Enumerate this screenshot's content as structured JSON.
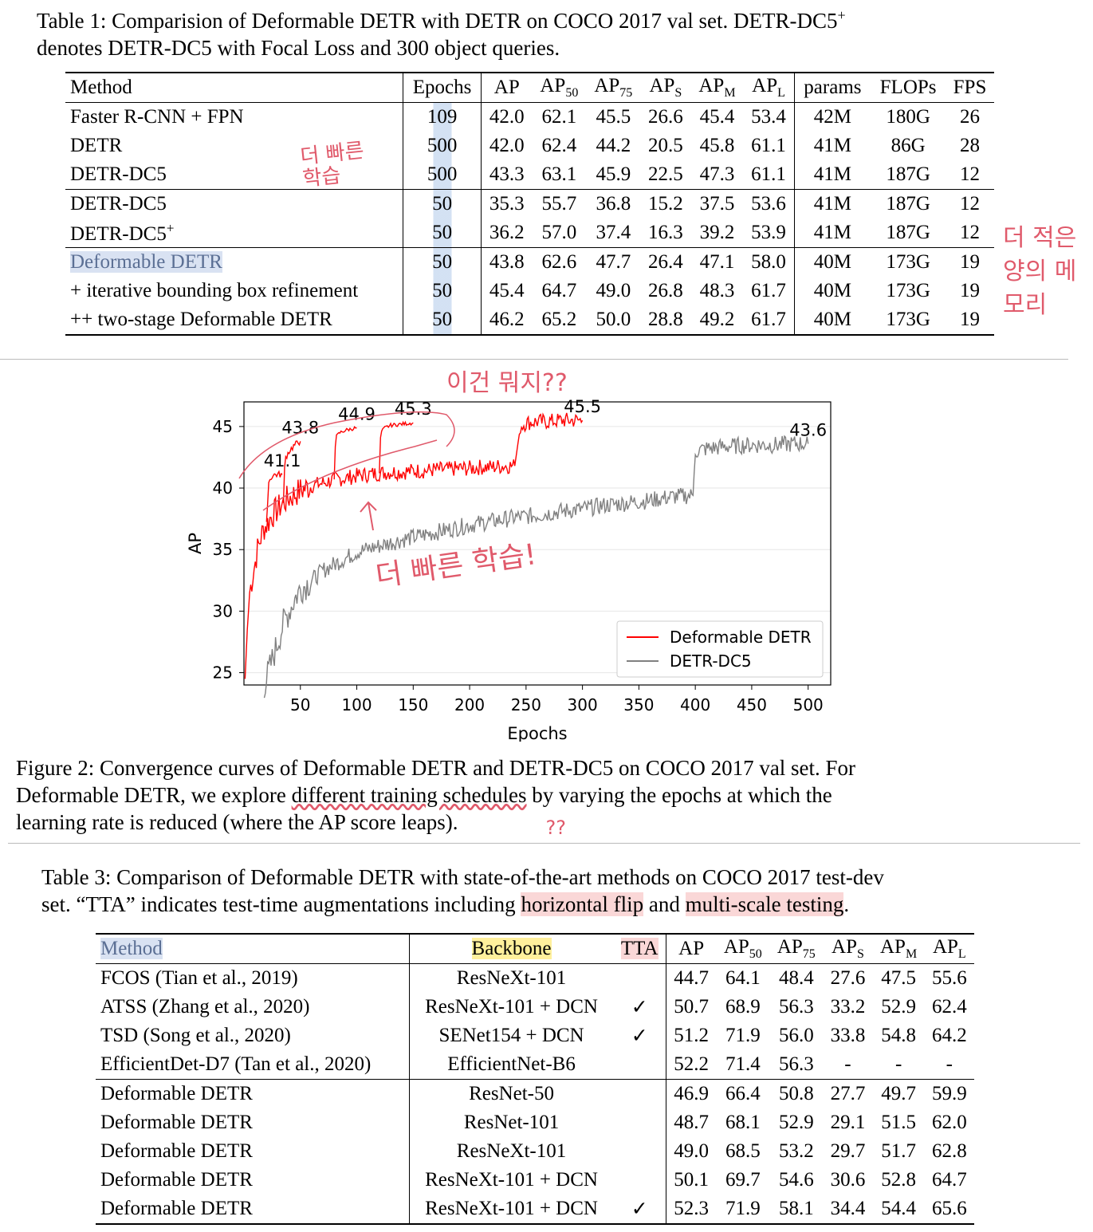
{
  "table1": {
    "caption_line1": "Table 1: Comparision of Deformable DETR with DETR on COCO 2017 val set. DETR-DC5",
    "caption_sup": "+",
    "caption_line2": "denotes DETR-DC5 with Focal Loss and 300 object queries.",
    "headers": [
      "Method",
      "Epochs",
      "AP",
      "AP50",
      "AP75",
      "APS",
      "APM",
      "APL",
      "params",
      "FLOPs",
      "FPS"
    ],
    "rows": [
      [
        "Faster R-CNN + FPN",
        "109",
        "42.0",
        "62.1",
        "45.5",
        "26.6",
        "45.4",
        "53.4",
        "42M",
        "180G",
        "26"
      ],
      [
        "DETR",
        "500",
        "42.0",
        "62.4",
        "44.2",
        "20.5",
        "45.8",
        "61.1",
        "41M",
        "86G",
        "28"
      ],
      [
        "DETR-DC5",
        "500",
        "43.3",
        "63.1",
        "45.9",
        "22.5",
        "47.3",
        "61.1",
        "41M",
        "187G",
        "12"
      ],
      [
        "DETR-DC5",
        "50",
        "35.3",
        "55.7",
        "36.8",
        "15.2",
        "37.5",
        "53.6",
        "41M",
        "187G",
        "12"
      ],
      [
        "DETR-DC5+",
        "50",
        "36.2",
        "57.0",
        "37.4",
        "16.3",
        "39.2",
        "53.9",
        "41M",
        "187G",
        "12"
      ],
      [
        "Deformable DETR",
        "50",
        "43.8",
        "62.6",
        "47.7",
        "26.4",
        "47.1",
        "58.0",
        "40M",
        "173G",
        "19"
      ],
      [
        "+ iterative bounding box refinement",
        "50",
        "45.4",
        "64.7",
        "49.0",
        "26.8",
        "48.3",
        "61.7",
        "40M",
        "173G",
        "19"
      ],
      [
        "++ two-stage Deformable DETR",
        "50",
        "46.2",
        "65.2",
        "50.0",
        "28.8",
        "49.2",
        "61.7",
        "40M",
        "173G",
        "19"
      ]
    ]
  },
  "chart_data": {
    "type": "line",
    "xlabel": "Epochs",
    "ylabel": "AP",
    "xlim": [
      0,
      520
    ],
    "ylim": [
      24,
      47
    ],
    "xticks": [
      50,
      100,
      150,
      200,
      250,
      300,
      350,
      400,
      450,
      500
    ],
    "yticks": [
      25,
      30,
      35,
      40,
      45
    ],
    "grid": true,
    "legend_position": "bottom-right",
    "series": [
      {
        "name": "Deformable DETR",
        "color": "#ff0000",
        "x": [
          1,
          3,
          5,
          8,
          10,
          12,
          15,
          18,
          20,
          25,
          30,
          35,
          40,
          45,
          50,
          60,
          70,
          80,
          90,
          100,
          110,
          120,
          130,
          140,
          150,
          160,
          170,
          180,
          190,
          200,
          210,
          220,
          230,
          240,
          245,
          250,
          260,
          270,
          280,
          290,
          300
        ],
        "y": [
          24.5,
          28.5,
          31.5,
          33.0,
          34.0,
          35.0,
          36.0,
          36.8,
          37.0,
          37.8,
          38.3,
          38.8,
          39.2,
          39.5,
          39.8,
          40.2,
          40.4,
          40.7,
          40.8,
          41.0,
          41.1,
          41.2,
          41.3,
          41.3,
          41.4,
          41.4,
          41.5,
          41.5,
          41.6,
          41.6,
          41.7,
          41.7,
          41.8,
          41.8,
          45.0,
          45.3,
          45.4,
          45.4,
          45.5,
          45.5,
          45.5
        ]
      },
      {
        "name": "DETR-DC5",
        "color": "#808080",
        "x": [
          18,
          20,
          25,
          30,
          35,
          40,
          45,
          50,
          60,
          70,
          80,
          90,
          100,
          120,
          140,
          160,
          180,
          200,
          220,
          240,
          260,
          280,
          300,
          320,
          340,
          360,
          380,
          398,
          400,
          410,
          430,
          450,
          470,
          490,
          500
        ],
        "y": [
          24.0,
          24.5,
          26.0,
          27.5,
          29.0,
          30.0,
          31.0,
          31.8,
          32.5,
          33.3,
          33.8,
          34.3,
          34.8,
          35.3,
          35.8,
          36.2,
          36.6,
          37.0,
          37.3,
          37.6,
          37.8,
          38.1,
          38.3,
          38.6,
          38.8,
          39.0,
          39.3,
          39.4,
          43.0,
          43.2,
          43.4,
          43.5,
          43.5,
          43.6,
          43.6
        ]
      }
    ],
    "branches": [
      {
        "x": [
          20,
          21,
          22,
          25,
          28,
          30,
          34
        ],
        "y": [
          37.0,
          39.0,
          40.5,
          41.0,
          41.1,
          41.1,
          41.1
        ]
      },
      {
        "x": [
          35,
          36,
          37,
          40,
          45,
          50
        ],
        "y": [
          38.8,
          41.5,
          42.5,
          43.0,
          43.5,
          43.8
        ]
      },
      {
        "x": [
          80,
          81,
          82,
          85,
          90,
          95,
          100
        ],
        "y": [
          40.7,
          43.5,
          44.2,
          44.5,
          44.7,
          44.8,
          44.9
        ]
      },
      {
        "x": [
          120,
          121,
          122,
          125,
          130,
          140,
          150
        ],
        "y": [
          41.2,
          44.0,
          44.6,
          44.9,
          45.1,
          45.2,
          45.3
        ]
      }
    ],
    "annotations": [
      {
        "x": 34,
        "y": 41.1,
        "text": "41.1"
      },
      {
        "x": 50,
        "y": 43.8,
        "text": "43.8"
      },
      {
        "x": 100,
        "y": 44.9,
        "text": "44.9"
      },
      {
        "x": 150,
        "y": 45.3,
        "text": "45.3"
      },
      {
        "x": 300,
        "y": 45.5,
        "text": "45.5"
      },
      {
        "x": 500,
        "y": 43.6,
        "text": "43.6"
      }
    ]
  },
  "figure2": {
    "caption_line1": "Figure 2: Convergence curves of Deformable DETR and DETR-DC5 on COCO 2017 val set. For",
    "caption_line2_pre": "Deformable DETR, we explore ",
    "caption_line2_hl": "different training schedules",
    "caption_line2_post": " by varying the epochs at which the",
    "caption_line3": "learning rate is reduced (where the AP score leaps)."
  },
  "table3": {
    "caption_line1": "Table 3: Comparison of Deformable DETR with state-of-the-art methods on COCO 2017 test-dev",
    "caption_line2_a": "set. “TTA” indicates test-time augmentations including ",
    "caption_line2_hl1": "horizontal flip",
    "caption_line2_b": " and ",
    "caption_line2_hl2": "multi-scale testing",
    "caption_line2_c": ".",
    "headers": [
      "Method",
      "Backbone",
      "TTA",
      "AP",
      "AP50",
      "AP75",
      "APS",
      "APM",
      "APL"
    ],
    "rows": [
      [
        "FCOS (Tian et al., 2019)",
        "ResNeXt-101",
        "",
        "44.7",
        "64.1",
        "48.4",
        "27.6",
        "47.5",
        "55.6"
      ],
      [
        "ATSS (Zhang et al., 2020)",
        "ResNeXt-101 + DCN",
        "✓",
        "50.7",
        "68.9",
        "56.3",
        "33.2",
        "52.9",
        "62.4"
      ],
      [
        "TSD (Song et al., 2020)",
        "SENet154 + DCN",
        "✓",
        "51.2",
        "71.9",
        "56.0",
        "33.8",
        "54.8",
        "64.2"
      ],
      [
        "EfficientDet-D7 (Tan et al., 2020)",
        "EfficientNet-B6",
        "",
        "52.2",
        "71.4",
        "56.3",
        "-",
        "-",
        "-"
      ],
      [
        "Deformable DETR",
        "ResNet-50",
        "",
        "46.9",
        "66.4",
        "50.8",
        "27.7",
        "49.7",
        "59.9"
      ],
      [
        "Deformable DETR",
        "ResNet-101",
        "",
        "48.7",
        "68.1",
        "52.9",
        "29.1",
        "51.5",
        "62.0"
      ],
      [
        "Deformable DETR",
        "ResNeXt-101",
        "",
        "49.0",
        "68.5",
        "53.2",
        "29.7",
        "51.7",
        "62.8"
      ],
      [
        "Deformable DETR",
        "ResNeXt-101 + DCN",
        "",
        "50.1",
        "69.7",
        "54.6",
        "30.6",
        "52.8",
        "64.7"
      ],
      [
        "Deformable DETR",
        "ResNeXt-101 + DCN",
        "✓",
        "52.3",
        "71.9",
        "58.1",
        "34.4",
        "54.4",
        "65.6"
      ]
    ]
  },
  "handwriting": {
    "note1": "더 빠른 학습",
    "note2": "더 적은 양의 메모리",
    "note3": "이건 뭐지??",
    "note4": "더 빠른 학습!",
    "note5": "??"
  }
}
